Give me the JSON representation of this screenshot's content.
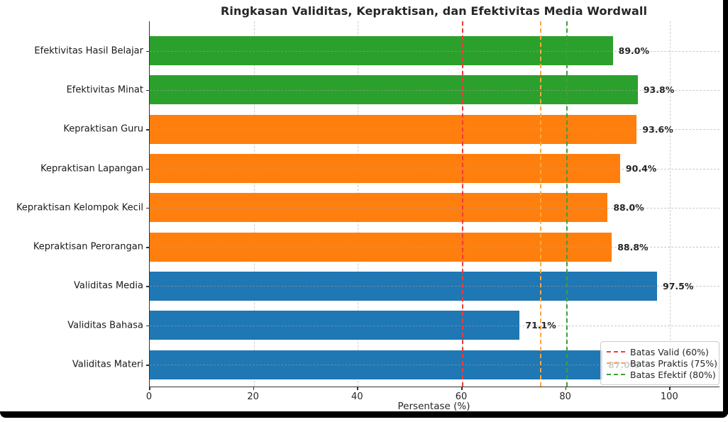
{
  "window": {
    "frame_color": "#000000",
    "background": "#ffffff"
  },
  "chart_data": {
    "type": "bar",
    "orientation": "horizontal",
    "title": "Ringkasan Validitas, Kepraktisan, dan Efektivitas Media Wordwall",
    "xlabel": "Persentase (%)",
    "xlim": [
      0,
      109.5
    ],
    "x_ticks": [
      0,
      20,
      40,
      60,
      80,
      100
    ],
    "grid": true,
    "legend_position": "lower right",
    "categories": [
      "Efektivitas Hasil Belajar",
      "Efektivitas Minat",
      "Kepraktisan Guru",
      "Kepraktisan Lapangan",
      "Kepraktisan Kelompok Kecil",
      "Kepraktisan Perorangan",
      "Validitas Media",
      "Validitas Bahasa",
      "Validitas Materi"
    ],
    "values": [
      89.0,
      93.8,
      93.6,
      90.4,
      88.0,
      88.8,
      97.5,
      71.1,
      87.0
    ],
    "value_labels": [
      "89.0%",
      "93.8%",
      "93.6%",
      "90.4%",
      "88.0%",
      "88.8%",
      "97.5%",
      "71.1%",
      "87.0%"
    ],
    "bar_groups": [
      "efektivitas",
      "efektivitas",
      "kepraktisan",
      "kepraktisan",
      "kepraktisan",
      "kepraktisan",
      "validitas",
      "validitas",
      "validitas"
    ],
    "group_colors": {
      "efektivitas": "#2ca02c",
      "kepraktisan": "#ff7f0e",
      "validitas": "#1f77b4"
    },
    "reference_lines": [
      {
        "label": "Batas Valid (60%)",
        "value": 60,
        "color": "#f03b3b"
      },
      {
        "label": "Batas Praktis (75%)",
        "value": 75,
        "color": "#ffa83d"
      },
      {
        "label": "Batas Efektif (80%)",
        "value": 80,
        "color": "#3ba03b"
      }
    ]
  }
}
